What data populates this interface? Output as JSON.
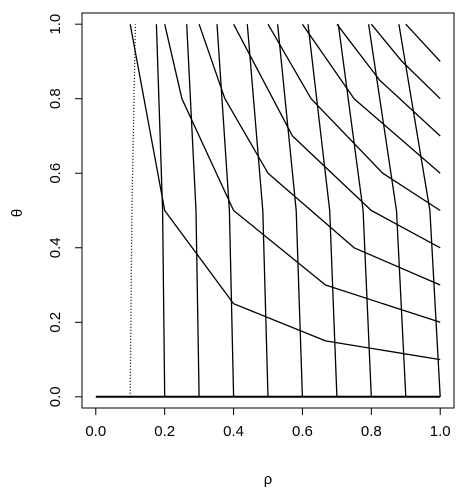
{
  "chart_data": {
    "type": "line",
    "x_label": "ρ",
    "y_label": "θ",
    "xlim": [
      -0.04,
      1.04
    ],
    "ylim": [
      -0.03,
      1.03
    ],
    "xticks": [
      {
        "value": 0,
        "label": "0.0"
      },
      0.2,
      0.4,
      0.6,
      0.8,
      {
        "value": 1,
        "label": "1.0"
      }
    ],
    "yticks": [
      {
        "value": 0,
        "label": "0.0"
      },
      0.2,
      0.4,
      0.6,
      0.8,
      {
        "value": 1,
        "label": "1.0"
      }
    ],
    "series": [
      {
        "color": "#000000",
        "style": "solid",
        "width": 2,
        "x": [
          0,
          1
        ],
        "y": [
          0,
          0
        ]
      },
      {
        "color": "#000000",
        "style": "dotted",
        "x": [
          0.1,
          0.105,
          0.115
        ],
        "y": [
          0,
          0.5,
          1
        ]
      },
      {
        "color": "#000000",
        "style": "solid",
        "x": [
          0.2,
          0.194,
          0.176
        ],
        "y": [
          0,
          0.5,
          1
        ]
      },
      {
        "color": "#000000",
        "style": "solid",
        "x": [
          0.3,
          0.291,
          0.264
        ],
        "y": [
          0,
          0.5,
          1
        ]
      },
      {
        "color": "#000000",
        "style": "solid",
        "x": [
          0.4,
          0.388,
          0.352
        ],
        "y": [
          0,
          0.5,
          1
        ]
      },
      {
        "color": "#000000",
        "style": "solid",
        "x": [
          0.5,
          0.485,
          0.44
        ],
        "y": [
          0,
          0.5,
          1
        ]
      },
      {
        "color": "#000000",
        "style": "solid",
        "x": [
          0.6,
          0.582,
          0.528
        ],
        "y": [
          0,
          0.5,
          1
        ]
      },
      {
        "color": "#000000",
        "style": "solid",
        "x": [
          0.7,
          0.679,
          0.616
        ],
        "y": [
          0,
          0.5,
          1
        ]
      },
      {
        "color": "#000000",
        "style": "solid",
        "x": [
          0.8,
          0.776,
          0.704
        ],
        "y": [
          0,
          0.5,
          1
        ]
      },
      {
        "color": "#000000",
        "style": "solid",
        "x": [
          0.9,
          0.873,
          0.792
        ],
        "y": [
          0,
          0.5,
          1
        ]
      },
      {
        "color": "#000000",
        "style": "solid",
        "x": [
          1,
          0.97,
          0.88
        ],
        "y": [
          0,
          0.5,
          1
        ]
      },
      {
        "color": "#000000",
        "style": "solid",
        "x": [
          1,
          0.667,
          0.4,
          0.2,
          0.1
        ],
        "y": [
          0.1,
          0.15,
          0.25,
          0.5,
          1
        ]
      },
      {
        "color": "#000000",
        "style": "solid",
        "x": [
          1,
          0.667,
          0.4,
          0.25,
          0.2
        ],
        "y": [
          0.2,
          0.3,
          0.5,
          0.8,
          1
        ]
      },
      {
        "color": "#000000",
        "style": "solid",
        "x": [
          1,
          0.75,
          0.5,
          0.375,
          0.3
        ],
        "y": [
          0.3,
          0.4,
          0.6,
          0.8,
          1
        ]
      },
      {
        "color": "#000000",
        "style": "solid",
        "x": [
          1,
          0.8,
          0.571,
          0.4
        ],
        "y": [
          0.4,
          0.5,
          0.7,
          1
        ]
      },
      {
        "color": "#000000",
        "style": "solid",
        "x": [
          1,
          0.833,
          0.625,
          0.5
        ],
        "y": [
          0.5,
          0.6,
          0.8,
          1
        ]
      },
      {
        "color": "#000000",
        "style": "solid",
        "x": [
          1,
          0.75,
          0.6
        ],
        "y": [
          0.6,
          0.8,
          1
        ]
      },
      {
        "color": "#000000",
        "style": "solid",
        "x": [
          1,
          0.824,
          0.7
        ],
        "y": [
          0.7,
          0.85,
          1
        ]
      },
      {
        "color": "#000000",
        "style": "solid",
        "x": [
          1,
          0.889,
          0.8
        ],
        "y": [
          0.8,
          0.9,
          1
        ]
      },
      {
        "color": "#000000",
        "style": "solid",
        "x": [
          1,
          0.9
        ],
        "y": [
          0.9,
          1
        ]
      }
    ]
  }
}
